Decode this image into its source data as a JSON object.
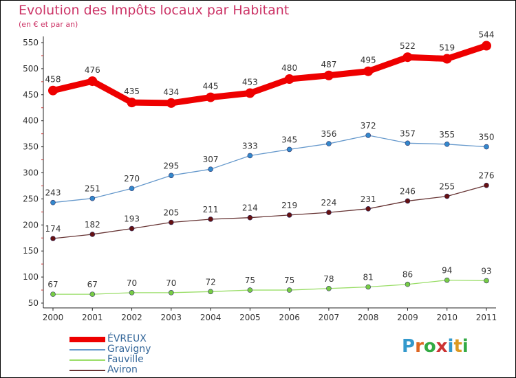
{
  "title": "Evolution des Impôts locaux par Habitant",
  "subtitle": "(en € et par an)",
  "logo_text": "Proxiti",
  "chart_data": {
    "type": "line",
    "categories": [
      "2000",
      "2001",
      "2002",
      "2003",
      "2004",
      "2005",
      "2006",
      "2007",
      "2008",
      "2009",
      "2010",
      "2011"
    ],
    "ylim": [
      50,
      550
    ],
    "yticks": [
      50,
      100,
      150,
      200,
      250,
      300,
      350,
      400,
      450,
      500,
      550
    ],
    "grid": false,
    "legend_position": "bottom-left",
    "series": [
      {
        "name": "ÉVREUX",
        "color": "#ee0000",
        "values": [
          458,
          476,
          435,
          434,
          445,
          453,
          480,
          487,
          495,
          522,
          519,
          544
        ]
      },
      {
        "name": "Gravigny",
        "color": "#6699cc",
        "values": [
          243,
          251,
          270,
          295,
          307,
          333,
          345,
          356,
          372,
          357,
          355,
          350
        ]
      },
      {
        "name": "Fauville",
        "color": "#99dd66",
        "values": [
          67,
          67,
          70,
          70,
          72,
          75,
          75,
          78,
          81,
          86,
          94,
          93
        ]
      },
      {
        "name": "Aviron",
        "color": "#663333",
        "values": [
          174,
          182,
          193,
          205,
          211,
          214,
          219,
          224,
          231,
          246,
          255,
          276
        ]
      }
    ]
  }
}
